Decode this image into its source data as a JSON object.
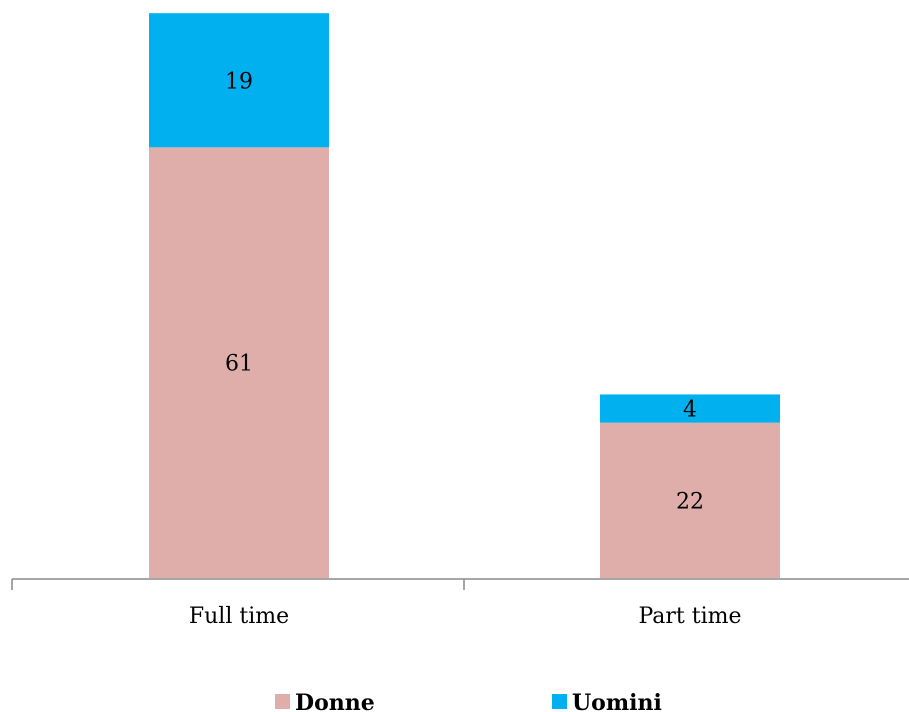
{
  "chart_data": {
    "type": "bar",
    "stacked": true,
    "categories": [
      "Full time",
      "Part time"
    ],
    "series": [
      {
        "name": "Donne",
        "values": [
          61,
          22
        ],
        "color": "#dfaeaa"
      },
      {
        "name": "Uomini",
        "values": [
          19,
          4
        ],
        "color": "#00b0ef"
      }
    ],
    "data_labels": true,
    "ylim": [
      0,
      80
    ],
    "grid": false,
    "legend_position": "bottom",
    "title": "",
    "xlabel": "",
    "ylabel": ""
  }
}
